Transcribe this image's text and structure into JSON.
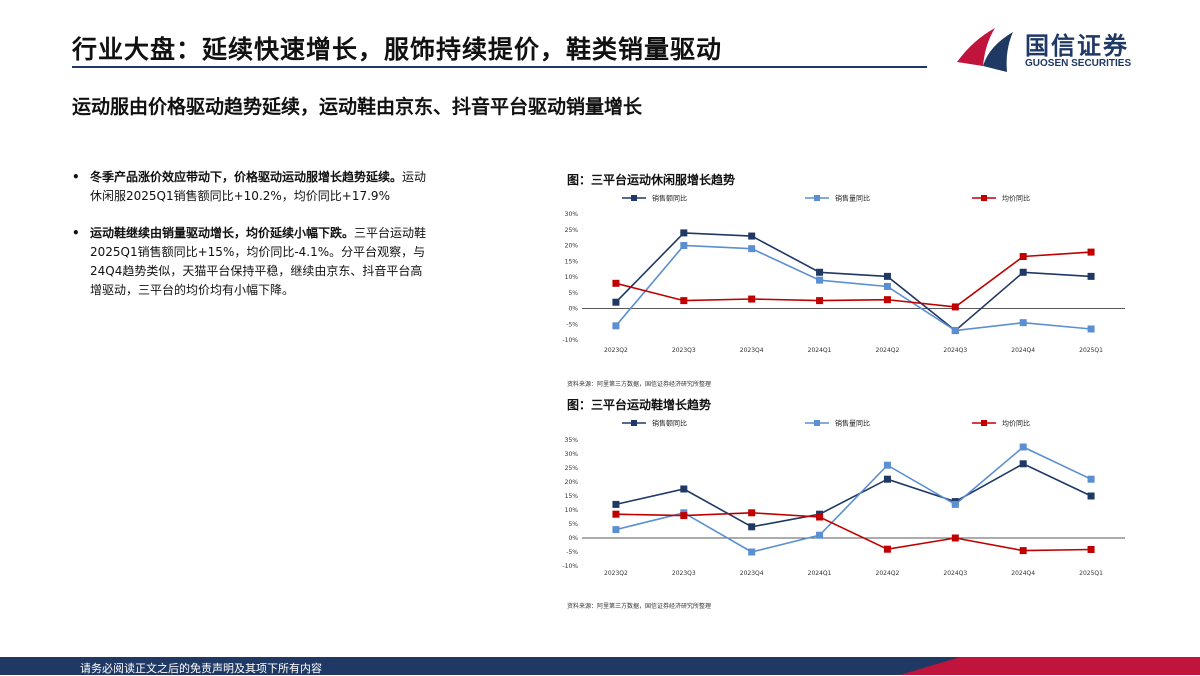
{
  "header": {
    "title": "行业大盘：延续快速增长，服饰持续提价，鞋类销量驱动",
    "logo_cn": "国信证券",
    "logo_en": "GUOSEN SECURITIES"
  },
  "subtitle": "运动服由价格驱动趋势延续，运动鞋由京东、抖音平台驱动销量增长",
  "bullets": [
    {
      "dot": "•",
      "lead": "冬季产品涨价效应带动下，价格驱动运动服增长趋势延续。",
      "text": "运动休闲服2025Q1销售额同比+10.2%，均价同比+17.9%"
    },
    {
      "dot": "•",
      "lead": "运动鞋继续由销量驱动增长，均价延续小幅下跌。",
      "text": "三平台运动鞋2025Q1销售额同比+15%，均价同比-4.1%。分平台观察，与24Q4趋势类似，天猫平台保持平稳，继续由京东、抖音平台高增驱动，三平台的均价均有小幅下降。"
    }
  ],
  "colors": {
    "sales": "#1f3864",
    "volume": "#5b8fd1",
    "price": "#c00000",
    "brand_red": "#c0143c",
    "brand_navy": "#1f3864"
  },
  "chart_data": [
    {
      "type": "line",
      "title": "图：三平台运动休闲服增长趋势",
      "source": "资料来源：阿里第三方数据，国信证券经济研究所整理",
      "categories": [
        "2023Q2",
        "2023Q3",
        "2023Q4",
        "2024Q1",
        "2024Q2",
        "2024Q3",
        "2024Q4",
        "2025Q1"
      ],
      "yticks": [
        "30%",
        "25%",
        "20%",
        "15%",
        "10%",
        "5%",
        "0%",
        "-5%",
        "-10%"
      ],
      "ylim": [
        -10,
        30
      ],
      "legend_position": "top",
      "series": [
        {
          "name": "销售额同比",
          "color_key": "sales",
          "values": [
            2,
            24,
            23,
            11.5,
            10.2,
            -7,
            11.5,
            10.2
          ]
        },
        {
          "name": "销售量同比",
          "color_key": "volume",
          "values": [
            -5.5,
            20,
            19,
            9,
            7,
            -7,
            -4.5,
            -6.5
          ]
        },
        {
          "name": "均价同比",
          "color_key": "price",
          "values": [
            8,
            2.5,
            3,
            2.5,
            2.8,
            0.5,
            16.5,
            17.9
          ]
        }
      ]
    },
    {
      "type": "line",
      "title": "图：三平台运动鞋增长趋势",
      "source": "资料来源：阿里第三方数据，国信证券经济研究所整理",
      "categories": [
        "2023Q2",
        "2023Q3",
        "2023Q4",
        "2024Q1",
        "2024Q2",
        "2024Q3",
        "2024Q4",
        "2025Q1"
      ],
      "yticks": [
        "35%",
        "30%",
        "25%",
        "20%",
        "15%",
        "10%",
        "5%",
        "0%",
        "-5%",
        "-10%"
      ],
      "ylim": [
        -10,
        35
      ],
      "legend_position": "top",
      "series": [
        {
          "name": "销售额同比",
          "color_key": "sales",
          "values": [
            12,
            17.5,
            4,
            8.5,
            21,
            13,
            26.5,
            15
          ]
        },
        {
          "name": "销售量同比",
          "color_key": "volume",
          "values": [
            3,
            9,
            -5,
            1,
            26,
            12,
            32.5,
            21
          ]
        },
        {
          "name": "均价同比",
          "color_key": "price",
          "values": [
            8.5,
            8,
            9,
            7.5,
            -4,
            0,
            -4.5,
            -4.1
          ]
        }
      ]
    }
  ],
  "footer": {
    "text": "请务必阅读正文之后的免责声明及其项下所有内容"
  }
}
